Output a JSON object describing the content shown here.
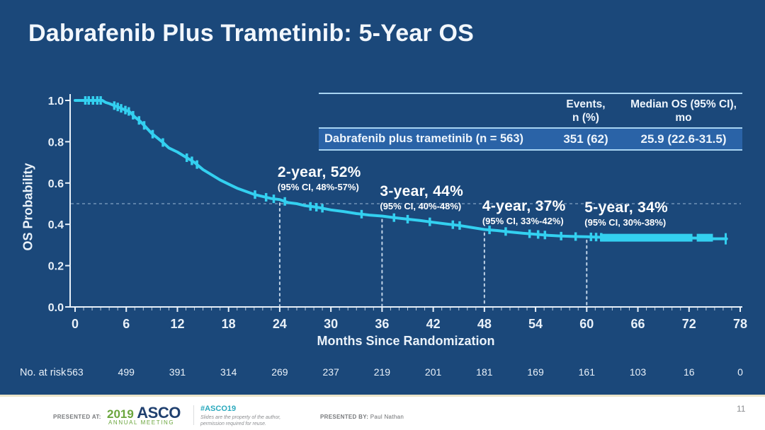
{
  "slide": {
    "title": "Dabrafenib Plus Trametinib: 5-Year OS",
    "page_number": "11",
    "background_color": "#1b487a",
    "curve_color": "#33d0f0"
  },
  "summary_table": {
    "events_header_line1": "Events,",
    "events_header_line2": "n (%)",
    "median_header_line1": "Median OS (95% CI),",
    "median_header_line2": "mo",
    "row_label": "Dabrafenib plus trametinib (n = 563)",
    "events_value": "351 (62)",
    "median_value": "25.9 (22.6-31.5)"
  },
  "chart_data": {
    "type": "line",
    "subtype": "kaplan-meier",
    "xlabel": "Months Since Randomization",
    "ylabel": "OS Probability",
    "xlim": [
      0,
      78
    ],
    "ylim": [
      0.0,
      1.0
    ],
    "xticks": [
      0,
      6,
      12,
      18,
      24,
      30,
      36,
      42,
      48,
      54,
      60,
      66,
      72,
      78
    ],
    "yticks": [
      0.0,
      0.2,
      0.4,
      0.6,
      0.8,
      1.0
    ],
    "grid": false,
    "legend_position": "none",
    "reference_line": {
      "y": 0.5,
      "style": "dashed"
    },
    "series": [
      {
        "name": "Dabrafenib plus trametinib (n = 563)",
        "color": "#33d0f0",
        "points": [
          [
            0,
            1.0
          ],
          [
            3.2,
            1.0
          ],
          [
            3.6,
            0.99
          ],
          [
            4.0,
            0.985
          ],
          [
            4.6,
            0.975
          ],
          [
            5.2,
            0.965
          ],
          [
            5.8,
            0.955
          ],
          [
            6.4,
            0.945
          ],
          [
            7.0,
            0.92
          ],
          [
            7.6,
            0.9
          ],
          [
            8.2,
            0.875
          ],
          [
            9.0,
            0.84
          ],
          [
            9.6,
            0.82
          ],
          [
            10.2,
            0.8
          ],
          [
            11.0,
            0.77
          ],
          [
            12.0,
            0.75
          ],
          [
            13.0,
            0.725
          ],
          [
            14.0,
            0.7
          ],
          [
            15.0,
            0.665
          ],
          [
            16.0,
            0.64
          ],
          [
            17.0,
            0.615
          ],
          [
            18.0,
            0.595
          ],
          [
            19.0,
            0.575
          ],
          [
            20.0,
            0.56
          ],
          [
            21.0,
            0.545
          ],
          [
            22.0,
            0.535
          ],
          [
            23.0,
            0.525
          ],
          [
            24.0,
            0.52
          ],
          [
            25.0,
            0.505
          ],
          [
            26.0,
            0.5
          ],
          [
            27.0,
            0.49
          ],
          [
            28.0,
            0.485
          ],
          [
            29.0,
            0.478
          ],
          [
            30.0,
            0.47
          ],
          [
            31.5,
            0.462
          ],
          [
            33.0,
            0.452
          ],
          [
            34.5,
            0.445
          ],
          [
            36.0,
            0.44
          ],
          [
            37.5,
            0.432
          ],
          [
            39.0,
            0.425
          ],
          [
            40.5,
            0.418
          ],
          [
            42.0,
            0.41
          ],
          [
            43.5,
            0.402
          ],
          [
            45.0,
            0.395
          ],
          [
            46.5,
            0.385
          ],
          [
            48.0,
            0.375
          ],
          [
            49.5,
            0.37
          ],
          [
            51.0,
            0.363
          ],
          [
            52.5,
            0.357
          ],
          [
            54.0,
            0.352
          ],
          [
            55.5,
            0.347
          ],
          [
            57.0,
            0.343
          ],
          [
            58.5,
            0.341
          ],
          [
            60.0,
            0.34
          ],
          [
            62.0,
            0.337
          ],
          [
            66.0,
            0.336
          ],
          [
            70.0,
            0.335
          ],
          [
            74.0,
            0.333
          ],
          [
            74.8,
            0.33
          ],
          [
            76.4,
            0.33
          ]
        ]
      }
    ],
    "censor_marks_months": [
      1.2,
      1.6,
      2.1,
      2.6,
      3.0,
      4.6,
      5.0,
      5.4,
      5.9,
      6.3,
      6.8,
      7.5,
      8.1,
      9.1,
      10.3,
      13.1,
      13.7,
      14.3,
      21.1,
      22.4,
      23.3,
      24.6,
      27.6,
      28.3,
      29.0,
      33.6,
      37.4,
      39.0,
      41.6,
      44.3,
      45.1,
      48.6,
      50.5,
      53.3,
      54.3,
      55.1,
      57.0,
      58.7,
      60.5,
      61.1,
      61.7
    ],
    "censor_dense_band": {
      "segments": [
        [
          61.6,
          72.4,
          0.335
        ],
        [
          72.9,
          74.8,
          0.335
        ]
      ],
      "tail_line": [
        74.8,
        76.4,
        0.33
      ],
      "end_tick_month": 76.3,
      "end_tick_p": 0.33
    },
    "landmarks": [
      {
        "month": 24,
        "label": "2-year, 52%",
        "ci": "(95% CI, 48%-57%)"
      },
      {
        "month": 36,
        "label": "3-year, 44%",
        "ci": "(95% CI, 40%-48%)"
      },
      {
        "month": 48,
        "label": "4-year, 37%",
        "ci": "(95% CI, 33%-42%)"
      },
      {
        "month": 60,
        "label": "5-year, 34%",
        "ci": "(95% CI, 30%-38%)"
      }
    ],
    "at_risk": {
      "label": "No. at risk",
      "times": [
        0,
        6,
        12,
        18,
        24,
        30,
        36,
        42,
        48,
        54,
        60,
        66,
        72,
        78
      ],
      "counts": [
        563,
        499,
        391,
        314,
        269,
        237,
        219,
        201,
        181,
        169,
        161,
        103,
        16,
        0
      ]
    }
  },
  "footer": {
    "presented_at_label": "PRESENTED AT:",
    "meeting_year": "2019",
    "meeting_org": "ASCO",
    "meeting_name": "ANNUAL MEETING",
    "hashtag": "#ASCO19",
    "disclaimer_line1": "Slides are the property of the author,",
    "disclaimer_line2": "permission required for reuse.",
    "presented_by_label": "PRESENTED BY:",
    "presenter": "Paul Nathan"
  }
}
